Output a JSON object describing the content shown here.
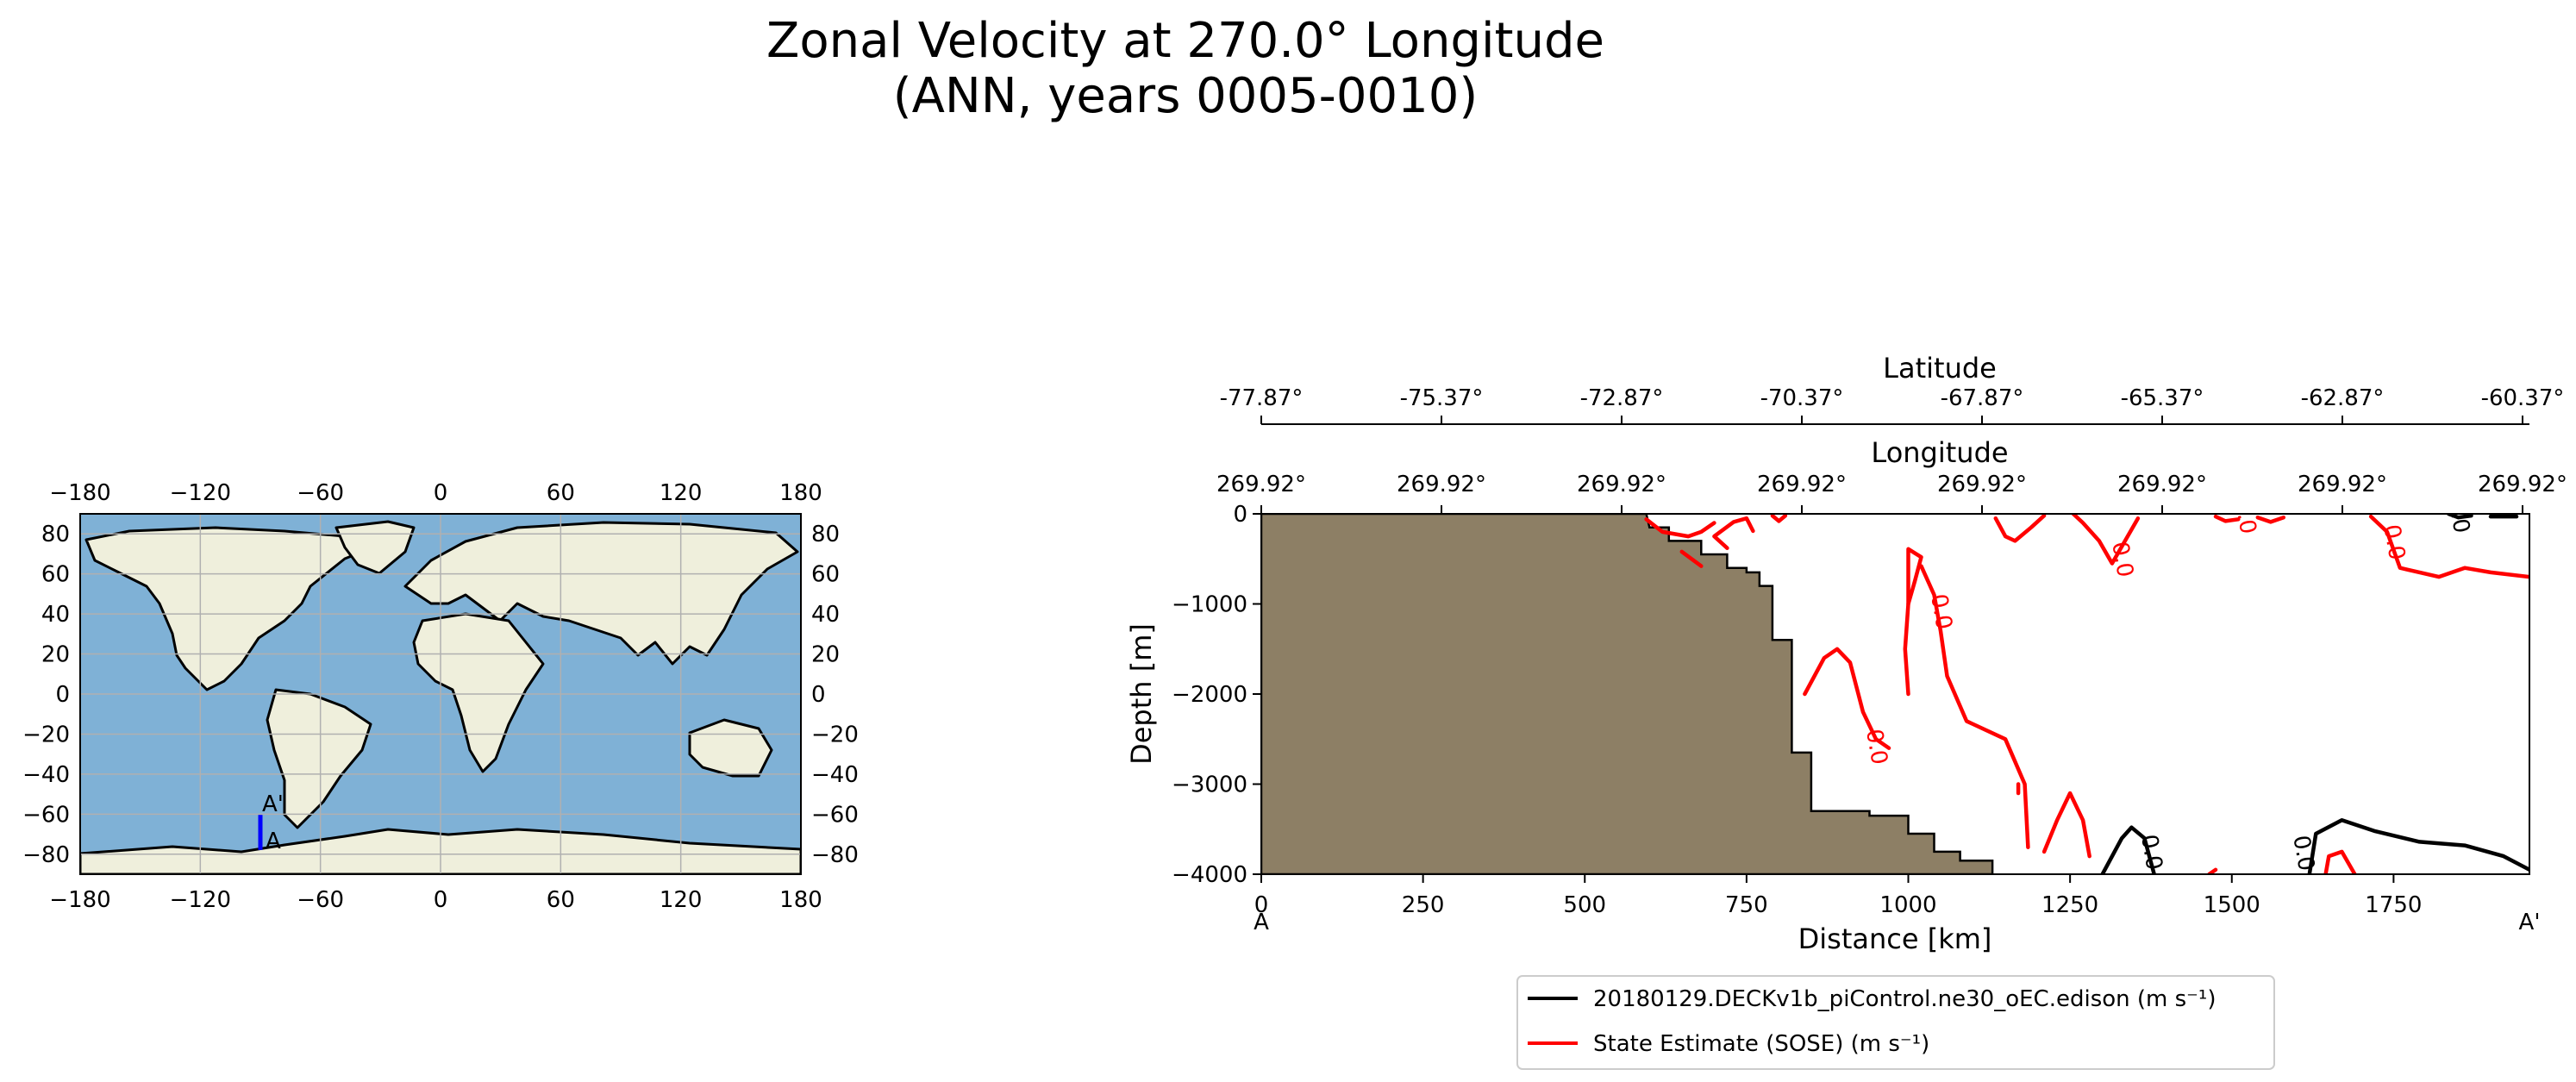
{
  "title": {
    "line1": "Zonal Velocity at 270.0° Longitude",
    "line2": "(ANN, years 0005-0010)"
  },
  "colors": {
    "ocean": "#7fb1d6",
    "land": "#efefdc",
    "topography": "#8d7f65",
    "model": "#000000",
    "observation": "#ff0000",
    "transect": "#0000ff",
    "grid": "#b0b0b0"
  },
  "chart_data": [
    {
      "type": "map",
      "projection": "PlateCarree",
      "xlim": [
        -180,
        180
      ],
      "ylim": [
        -90,
        90
      ],
      "xticks": [
        -180,
        -120,
        -60,
        0,
        60,
        120,
        180
      ],
      "yticks": [
        80,
        60,
        40,
        20,
        0,
        -20,
        -40,
        -60,
        -80
      ],
      "xtick_labels": [
        "−180",
        "−120",
        "−60",
        "0",
        "60",
        "120",
        "180"
      ],
      "ytick_labels": [
        "80",
        "60",
        "40",
        "20",
        "0",
        "−20",
        "−40",
        "−60",
        "−80"
      ],
      "grid": true,
      "transect": {
        "lon": -90,
        "lat_start": -77.87,
        "lat_end": -60.37,
        "start_label": "A",
        "end_label": "A'"
      }
    },
    {
      "type": "contour",
      "xlabel": "Distance [km]",
      "ylabel": "Depth [m]",
      "xlim": [
        0,
        1960
      ],
      "ylim": [
        -4000,
        0
      ],
      "xticks": [
        0,
        250,
        500,
        750,
        1000,
        1250,
        1500,
        1750
      ],
      "yticks": [
        0,
        -1000,
        -2000,
        -3000,
        -4000
      ],
      "ytick_labels": [
        "0",
        "−1000",
        "−2000",
        "−3000",
        "−4000"
      ],
      "x_start_label": "A",
      "x_end_label": "A'",
      "top_axis_latitude": {
        "label": "Latitude",
        "ticks": [
          "-77.87°",
          "-75.37°",
          "-72.87°",
          "-70.37°",
          "-67.87°",
          "-65.37°",
          "-62.87°",
          "-60.37°"
        ]
      },
      "top_axis_longitude": {
        "label": "Longitude",
        "ticks": [
          "269.92°",
          "269.92°",
          "269.92°",
          "269.92°",
          "269.92°",
          "269.92°",
          "269.92°",
          "269.92°"
        ]
      },
      "contour_level": "0.0",
      "topography": [
        [
          0,
          0
        ],
        [
          595,
          0
        ],
        [
          600,
          -150
        ],
        [
          630,
          -150
        ],
        [
          630,
          -300
        ],
        [
          680,
          -300
        ],
        [
          680,
          -450
        ],
        [
          720,
          -450
        ],
        [
          720,
          -600
        ],
        [
          750,
          -600
        ],
        [
          750,
          -650
        ],
        [
          770,
          -650
        ],
        [
          770,
          -800
        ],
        [
          790,
          -800
        ],
        [
          790,
          -1400
        ],
        [
          820,
          -1400
        ],
        [
          820,
          -2650
        ],
        [
          850,
          -2650
        ],
        [
          850,
          -3300
        ],
        [
          940,
          -3300
        ],
        [
          940,
          -3350
        ],
        [
          1000,
          -3350
        ],
        [
          1000,
          -3550
        ],
        [
          1040,
          -3550
        ],
        [
          1040,
          -3750
        ],
        [
          1080,
          -3750
        ],
        [
          1080,
          -3850
        ],
        [
          1130,
          -3850
        ],
        [
          1130,
          -4000
        ],
        [
          0,
          -4000
        ]
      ],
      "series": [
        {
          "name": "20180129.DECKv1b_piControl.ne30_oEC.edison (m s⁻¹)",
          "color": "#000000",
          "contours": [
            [
              [
                1300,
                -4000
              ],
              [
                1330,
                -3600
              ],
              [
                1345,
                -3480
              ],
              [
                1365,
                -3600
              ],
              [
                1380,
                -4000
              ]
            ],
            [
              [
                1620,
                -4000
              ],
              [
                1630,
                -3550
              ],
              [
                1670,
                -3400
              ],
              [
                1720,
                -3520
              ],
              [
                1790,
                -3640
              ],
              [
                1860,
                -3680
              ],
              [
                1920,
                -3800
              ],
              [
                1960,
                -3950
              ]
            ],
            [
              [
                1835,
                0
              ],
              [
                1850,
                -40
              ],
              [
                1870,
                -20
              ]
            ],
            [
              [
                1900,
                -30
              ],
              [
                1940,
                -30
              ]
            ]
          ],
          "label_positions": [
            [
              1365,
              -3770
            ],
            [
              1600,
              -3780
            ],
            [
              1840,
              -30
            ]
          ]
        },
        {
          "name": "State Estimate (SOSE) (m s⁻¹)",
          "color": "#ff0000",
          "contours": [
            [
              [
                595,
                -60
              ],
              [
                620,
                -200
              ],
              [
                660,
                -250
              ],
              [
                680,
                -200
              ],
              [
                700,
                -100
              ]
            ],
            [
              [
                720,
                -380
              ],
              [
                700,
                -250
              ],
              [
                730,
                -90
              ],
              [
                750,
                -50
              ],
              [
                760,
                -190
              ]
            ],
            [
              [
                650,
                -420
              ],
              [
                680,
                -580
              ]
            ],
            [
              [
                790,
                -20
              ],
              [
                800,
                -80
              ],
              [
                810,
                -20
              ]
            ],
            [
              [
                1000,
                -1000
              ],
              [
                1010,
                -750
              ],
              [
                1020,
                -480
              ],
              [
                1000,
                -390
              ],
              [
                1000,
                -1000
              ]
            ],
            [
              [
                1000,
                -1000
              ],
              [
                995,
                -1500
              ],
              [
                1000,
                -2000
              ]
            ],
            [
              [
                840,
                -2000
              ],
              [
                870,
                -1600
              ],
              [
                890,
                -1500
              ],
              [
                910,
                -1650
              ],
              [
                930,
                -2200
              ],
              [
                950,
                -2500
              ],
              [
                970,
                -2600
              ]
            ],
            [
              [
                1020,
                -580
              ],
              [
                1040,
                -900
              ],
              [
                1050,
                -1300
              ],
              [
                1060,
                -1800
              ],
              [
                1090,
                -2300
              ],
              [
                1150,
                -2500
              ],
              [
                1180,
                -3000
              ],
              [
                1185,
                -3700
              ]
            ],
            [
              [
                1170,
                -3000
              ],
              [
                1170,
                -3100
              ]
            ],
            [
              [
                1210,
                -3750
              ],
              [
                1230,
                -3400
              ],
              [
                1250,
                -3100
              ],
              [
                1270,
                -3400
              ],
              [
                1280,
                -3800
              ]
            ],
            [
              [
                1255,
                0
              ],
              [
                1270,
                -100
              ],
              [
                1295,
                -300
              ],
              [
                1315,
                -550
              ],
              [
                1335,
                -300
              ],
              [
                1355,
                -50
              ]
            ],
            [
              [
                1135,
                -50
              ],
              [
                1150,
                -250
              ],
              [
                1165,
                -300
              ],
              [
                1190,
                -150
              ],
              [
                1210,
                -20
              ]
            ],
            [
              [
                1475,
                -30
              ],
              [
                1490,
                -80
              ],
              [
                1510,
                -60
              ]
            ],
            [
              [
                1540,
                -40
              ],
              [
                1560,
                -90
              ],
              [
                1580,
                -40
              ]
            ],
            [
              [
                1715,
                -30
              ],
              [
                1740,
                -200
              ],
              [
                1760,
                -600
              ],
              [
                1820,
                -700
              ],
              [
                1860,
                -600
              ],
              [
                1900,
                -650
              ],
              [
                1960,
                -700
              ]
            ],
            [
              [
                1465,
                -4000
              ],
              [
                1475,
                -3950
              ]
            ],
            [
              [
                1645,
                -4000
              ],
              [
                1650,
                -3800
              ],
              [
                1670,
                -3750
              ],
              [
                1690,
                -4000
              ]
            ]
          ],
          "label_positions": [
            [
              1040,
              -1100
            ],
            [
              940,
              -2600
            ],
            [
              1320,
              -520
            ],
            [
              1510,
              -40
            ],
            [
              1740,
              -330
            ]
          ]
        }
      ],
      "legend": {
        "placement": "bottom-center",
        "entries": [
          {
            "label": "20180129.DECKv1b_piControl.ne30_oEC.edison (m s⁻¹)",
            "color": "#000000"
          },
          {
            "label": "State Estimate (SOSE) (m s⁻¹)",
            "color": "#ff0000"
          }
        ]
      }
    }
  ]
}
